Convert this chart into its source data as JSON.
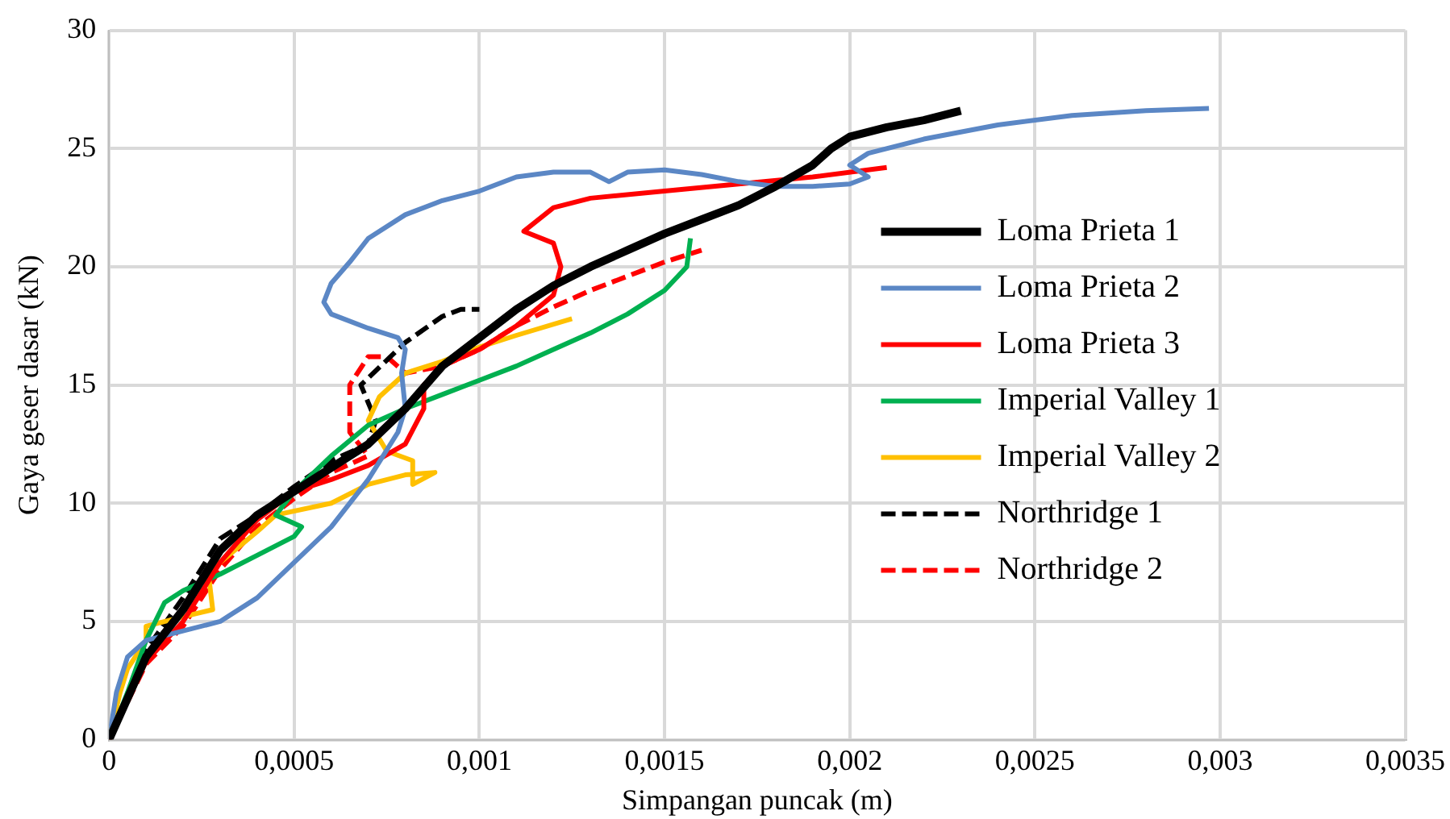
{
  "chart_data": {
    "type": "line",
    "xlabel": "Simpangan puncak (m)",
    "ylabel": "Gaya geser dasar (kN)",
    "xlim": [
      0,
      0.0035
    ],
    "xticks": [
      0,
      {
        "value": 0.0005,
        "label": "0,0005"
      },
      {
        "value": 0.001,
        "label": "0,001"
      },
      {
        "value": 0.0015,
        "label": "0,0015"
      },
      {
        "value": 0.002,
        "label": "0,002"
      },
      {
        "value": 0.0025,
        "label": "0,0025"
      },
      {
        "value": 0.003,
        "label": "0,003"
      },
      {
        "value": 0.0035,
        "label": "0,0035"
      }
    ],
    "ylim": [
      0,
      30
    ],
    "yticks": [
      0,
      5,
      10,
      15,
      20,
      25,
      30
    ],
    "grid": true,
    "legend": "right",
    "marker": "none",
    "series": [
      {
        "name": "Loma Prieta 1",
        "color": "#000000",
        "line_style": "solid",
        "x": [
          0,
          0.0001,
          0.0002,
          0.0003,
          0.0004,
          0.0005,
          0.0006,
          0.0007,
          0.0008,
          0.0009,
          0.001,
          0.0011,
          0.0012,
          0.0013,
          0.0014,
          0.0015,
          0.0016,
          0.0017,
          0.0018,
          0.0019,
          0.00195,
          0.002,
          0.0021,
          0.0022,
          0.0023
        ],
        "values": [
          0,
          3.5,
          5.5,
          8,
          9.5,
          10.5,
          11.5,
          12.5,
          14,
          15.8,
          17,
          18.2,
          19.2,
          20,
          20.7,
          21.4,
          22,
          22.6,
          23.4,
          24.3,
          25,
          25.5,
          25.9,
          26.2,
          26.6
        ]
      },
      {
        "name": "Loma Prieta 2",
        "color": "#5b87c5",
        "line_style": "solid",
        "x": [
          0,
          2e-05,
          5e-05,
          0.0001,
          0.0002,
          0.0003,
          0.0004,
          0.0005,
          0.0006,
          0.0007,
          0.00078,
          0.0008,
          0.00079,
          0.0008,
          0.00078,
          0.0007,
          0.0006,
          0.00058,
          0.0006,
          0.00065,
          0.0007,
          0.0008,
          0.0009,
          0.001,
          0.0011,
          0.0012,
          0.0013,
          0.00135,
          0.0014,
          0.0015,
          0.0016,
          0.0017,
          0.0018,
          0.0019,
          0.002,
          0.00205,
          0.002,
          0.00205,
          0.0022,
          0.0024,
          0.0026,
          0.0028,
          0.00297
        ],
        "values": [
          0,
          2,
          3.5,
          4.2,
          4.6,
          5,
          6,
          7.5,
          9,
          11,
          13,
          14,
          15.5,
          16.5,
          17,
          17.4,
          18,
          18.5,
          19.3,
          20.2,
          21.2,
          22.2,
          22.8,
          23.2,
          23.8,
          24,
          24,
          23.6,
          24,
          24.1,
          23.9,
          23.6,
          23.4,
          23.4,
          23.5,
          23.8,
          24.3,
          24.8,
          25.4,
          26,
          26.4,
          26.6,
          26.7
        ]
      },
      {
        "name": "Loma Prieta 3",
        "color": "#ff0000",
        "line_style": "solid",
        "x": [
          0,
          0.0001,
          0.0002,
          0.0003,
          0.0004,
          0.0005,
          0.0006,
          0.0007,
          0.0008,
          0.00085,
          0.00085,
          0.0009,
          0.001,
          0.0011,
          0.0012,
          0.00122,
          0.0012,
          0.00112,
          0.0012,
          0.0013,
          0.0015,
          0.0017,
          0.0019,
          0.0021
        ],
        "values": [
          0,
          3.3,
          5,
          7.5,
          9.3,
          10.5,
          11,
          11.6,
          12.5,
          14,
          15,
          15.8,
          16.5,
          17.5,
          18.8,
          20,
          21,
          21.5,
          22.5,
          22.9,
          23.2,
          23.5,
          23.8,
          24.2
        ]
      },
      {
        "name": "Imperial Valley 1",
        "color": "#00b050",
        "line_style": "solid",
        "x": [
          0,
          5e-05,
          0.0001,
          0.00015,
          0.0002,
          0.0003,
          0.0004,
          0.0005,
          0.00052,
          0.00045,
          0.0005,
          0.0006,
          0.0007,
          0.0008,
          0.0009,
          0.001,
          0.0011,
          0.0012,
          0.0013,
          0.0014,
          0.0015,
          0.00156,
          0.00157
        ],
        "values": [
          0,
          2,
          4.2,
          5.8,
          6.3,
          7,
          7.8,
          8.6,
          9,
          9.5,
          10.5,
          12,
          13.3,
          14,
          14.6,
          15.2,
          15.8,
          16.5,
          17.2,
          18,
          19,
          20,
          21.2
        ]
      },
      {
        "name": "Imperial Valley 2",
        "color": "#ffc000",
        "line_style": "solid",
        "x": [
          0,
          3e-05,
          5e-05,
          0.0001,
          0.0001,
          0.0002,
          0.00028,
          0.00027,
          0.0003,
          0.0004,
          0.00045,
          0.0006,
          0.0007,
          0.0008,
          0.00088,
          0.00082,
          0.00082,
          0.00075,
          0.0007,
          0.00073,
          0.0008,
          0.0009,
          0.001,
          0.0011,
          0.00125
        ],
        "values": [
          0,
          2,
          3,
          4.2,
          4.8,
          5.2,
          5.5,
          6.8,
          7.5,
          8.8,
          9.5,
          10,
          10.8,
          11.2,
          11.3,
          10.8,
          11.8,
          12.2,
          13.5,
          14.5,
          15.5,
          16,
          16.6,
          17.1,
          17.8
        ]
      },
      {
        "name": "Northridge 1",
        "color": "#000000",
        "line_style": "dashed",
        "x": [
          0,
          0.0001,
          0.0002,
          0.0003,
          0.0004,
          0.0005,
          0.0006,
          0.0007,
          0.00072,
          0.00068,
          0.0008,
          0.0009,
          0.00095,
          0.001
        ],
        "values": [
          0,
          3.8,
          6,
          8.5,
          9.5,
          10.7,
          11.8,
          12.5,
          13.5,
          15,
          16.8,
          17.9,
          18.2,
          18.2
        ]
      },
      {
        "name": "Northridge 2",
        "color": "#ff0000",
        "line_style": "dashed",
        "x": [
          0,
          0.0001,
          0.0002,
          0.0003,
          0.0004,
          0.0005,
          0.0006,
          0.0007,
          0.00065,
          0.00065,
          0.0007,
          0.00075,
          0.0008,
          0.0009,
          0.001,
          0.0011,
          0.0012,
          0.0013,
          0.0015,
          0.0016
        ],
        "values": [
          0,
          3.2,
          4.8,
          7.2,
          9,
          10.2,
          11.3,
          12,
          13,
          15,
          16.2,
          16.2,
          15.5,
          15.8,
          16.5,
          17.5,
          18.3,
          19,
          20.2,
          20.7
        ]
      }
    ]
  }
}
